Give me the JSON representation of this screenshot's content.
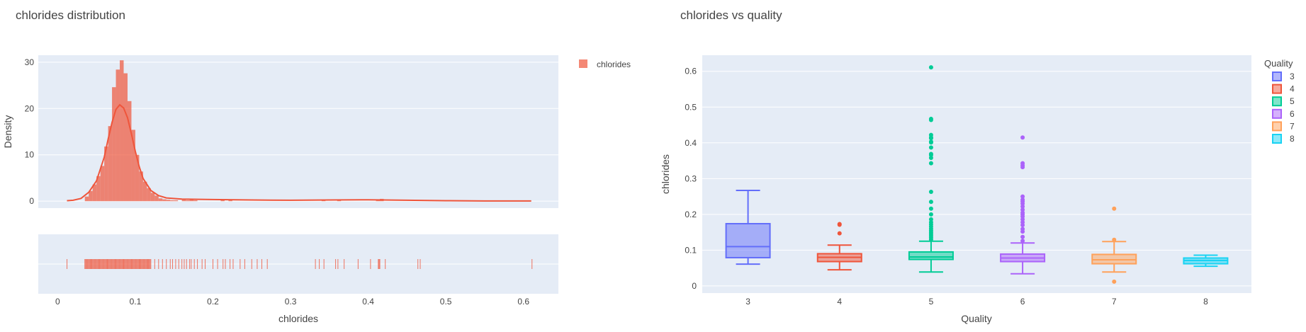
{
  "colors": {
    "plot_bg": "#E5ECF6",
    "grid": "#ffffff",
    "text": "#444444",
    "title": "#444444",
    "hist": "#EF553B"
  },
  "chart_data": [
    {
      "type": "histogram",
      "title": "chlorides distribution",
      "xlabel": "chlorides",
      "ylabel": "Density",
      "xlim": [
        -0.025,
        0.645
      ],
      "ylim": [
        -1.5,
        31.5
      ],
      "x_ticks": [
        "0",
        "0.1",
        "0.2",
        "0.3",
        "0.4",
        "0.5",
        "0.6"
      ],
      "y_ticks": [
        "0",
        "10",
        "20",
        "30"
      ],
      "legend": {
        "label": "chlorides",
        "position": "top-right"
      },
      "bin_width": 0.005,
      "bins": [
        [
          0.035,
          1.0
        ],
        [
          0.04,
          2.2
        ],
        [
          0.045,
          3.6
        ],
        [
          0.05,
          5.4
        ],
        [
          0.055,
          7.6
        ],
        [
          0.06,
          11.8
        ],
        [
          0.065,
          16.2
        ],
        [
          0.07,
          24.6
        ],
        [
          0.075,
          28.4
        ],
        [
          0.08,
          30.4
        ],
        [
          0.085,
          27.6
        ],
        [
          0.09,
          21.6
        ],
        [
          0.095,
          15.4
        ],
        [
          0.1,
          10.0
        ],
        [
          0.105,
          6.4
        ],
        [
          0.11,
          4.2
        ],
        [
          0.115,
          2.8
        ],
        [
          0.12,
          1.8
        ],
        [
          0.125,
          1.2
        ],
        [
          0.13,
          0.6
        ],
        [
          0.135,
          0.4
        ],
        [
          0.14,
          0.3
        ],
        [
          0.145,
          0.2
        ],
        [
          0.15,
          0.2
        ],
        [
          0.16,
          0.3
        ],
        [
          0.165,
          0.2
        ],
        [
          0.17,
          0.3
        ],
        [
          0.175,
          0.2
        ],
        [
          0.21,
          0.2
        ],
        [
          0.22,
          0.2
        ],
        [
          0.34,
          0.2
        ],
        [
          0.36,
          0.2
        ],
        [
          0.41,
          0.4
        ],
        [
          0.415,
          0.5
        ]
      ],
      "kde": [
        [
          0.012,
          0.1
        ],
        [
          0.02,
          0.2
        ],
        [
          0.03,
          0.6
        ],
        [
          0.04,
          1.9
        ],
        [
          0.05,
          4.4
        ],
        [
          0.06,
          9.5
        ],
        [
          0.065,
          13.4
        ],
        [
          0.07,
          17.0
        ],
        [
          0.075,
          19.8
        ],
        [
          0.08,
          20.8
        ],
        [
          0.085,
          20.1
        ],
        [
          0.09,
          18.0
        ],
        [
          0.095,
          14.5
        ],
        [
          0.1,
          10.8
        ],
        [
          0.105,
          7.5
        ],
        [
          0.11,
          4.9
        ],
        [
          0.12,
          2.3
        ],
        [
          0.13,
          1.2
        ],
        [
          0.14,
          0.7
        ],
        [
          0.16,
          0.45
        ],
        [
          0.2,
          0.35
        ],
        [
          0.25,
          0.25
        ],
        [
          0.3,
          0.2
        ],
        [
          0.35,
          0.25
        ],
        [
          0.4,
          0.3
        ],
        [
          0.45,
          0.2
        ],
        [
          0.5,
          0.1
        ],
        [
          0.55,
          0.05
        ],
        [
          0.61,
          0.05
        ]
      ],
      "rug_dense": [
        0.035,
        0.12
      ],
      "rug_sparse": [
        0.012,
        0.125,
        0.13,
        0.135,
        0.14,
        0.145,
        0.148,
        0.152,
        0.156,
        0.16,
        0.163,
        0.166,
        0.17,
        0.172,
        0.176,
        0.18,
        0.186,
        0.19,
        0.2,
        0.206,
        0.213,
        0.216,
        0.222,
        0.226,
        0.235,
        0.241,
        0.25,
        0.257,
        0.263,
        0.27,
        0.332,
        0.337,
        0.343,
        0.358,
        0.361,
        0.369,
        0.387,
        0.403,
        0.413,
        0.414,
        0.415,
        0.422,
        0.464,
        0.467,
        0.611
      ]
    },
    {
      "type": "box",
      "title": "chlorides vs quality",
      "xlabel": "Quality",
      "ylabel": "chlorides",
      "ylim": [
        -0.02,
        0.645
      ],
      "y_ticks": [
        "0",
        "0.1",
        "0.2",
        "0.3",
        "0.4",
        "0.5",
        "0.6"
      ],
      "legend": {
        "title": "Quality",
        "position": "top-right"
      },
      "series": [
        {
          "name": "3",
          "color": "#636EFA",
          "q1": 0.079,
          "median": 0.11,
          "q3": 0.174,
          "lower": 0.061,
          "upper": 0.267,
          "outliers": []
        },
        {
          "name": "4",
          "color": "#EF553B",
          "q1": 0.068,
          "median": 0.08,
          "q3": 0.09,
          "lower": 0.045,
          "upper": 0.114,
          "outliers": [
            0.147,
            0.171,
            0.173
          ]
        },
        {
          "name": "5",
          "color": "#00CC96",
          "q1": 0.074,
          "median": 0.081,
          "q3": 0.095,
          "lower": 0.039,
          "upper": 0.125,
          "outliers": [
            0.13,
            0.135,
            0.14,
            0.145,
            0.15,
            0.155,
            0.16,
            0.166,
            0.172,
            0.178,
            0.186,
            0.2,
            0.216,
            0.235,
            0.263,
            0.343,
            0.358,
            0.366,
            0.369,
            0.387,
            0.401,
            0.403,
            0.413,
            0.415,
            0.422,
            0.464,
            0.467,
            0.611
          ]
        },
        {
          "name": "6",
          "color": "#AB63FA",
          "q1": 0.068,
          "median": 0.078,
          "q3": 0.089,
          "lower": 0.034,
          "upper": 0.12,
          "outliers": [
            0.126,
            0.137,
            0.152,
            0.159,
            0.17,
            0.178,
            0.186,
            0.194,
            0.2,
            0.205,
            0.213,
            0.222,
            0.23,
            0.236,
            0.241,
            0.25,
            0.332,
            0.337,
            0.343,
            0.415
          ]
        },
        {
          "name": "7",
          "color": "#FFA15A",
          "q1": 0.062,
          "median": 0.073,
          "q3": 0.088,
          "lower": 0.039,
          "upper": 0.124,
          "outliers": [
            0.012,
            0.129,
            0.216
          ]
        },
        {
          "name": "8",
          "color": "#19D3F3",
          "q1": 0.062,
          "median": 0.071,
          "q3": 0.078,
          "lower": 0.055,
          "upper": 0.086,
          "outliers": []
        }
      ]
    }
  ]
}
